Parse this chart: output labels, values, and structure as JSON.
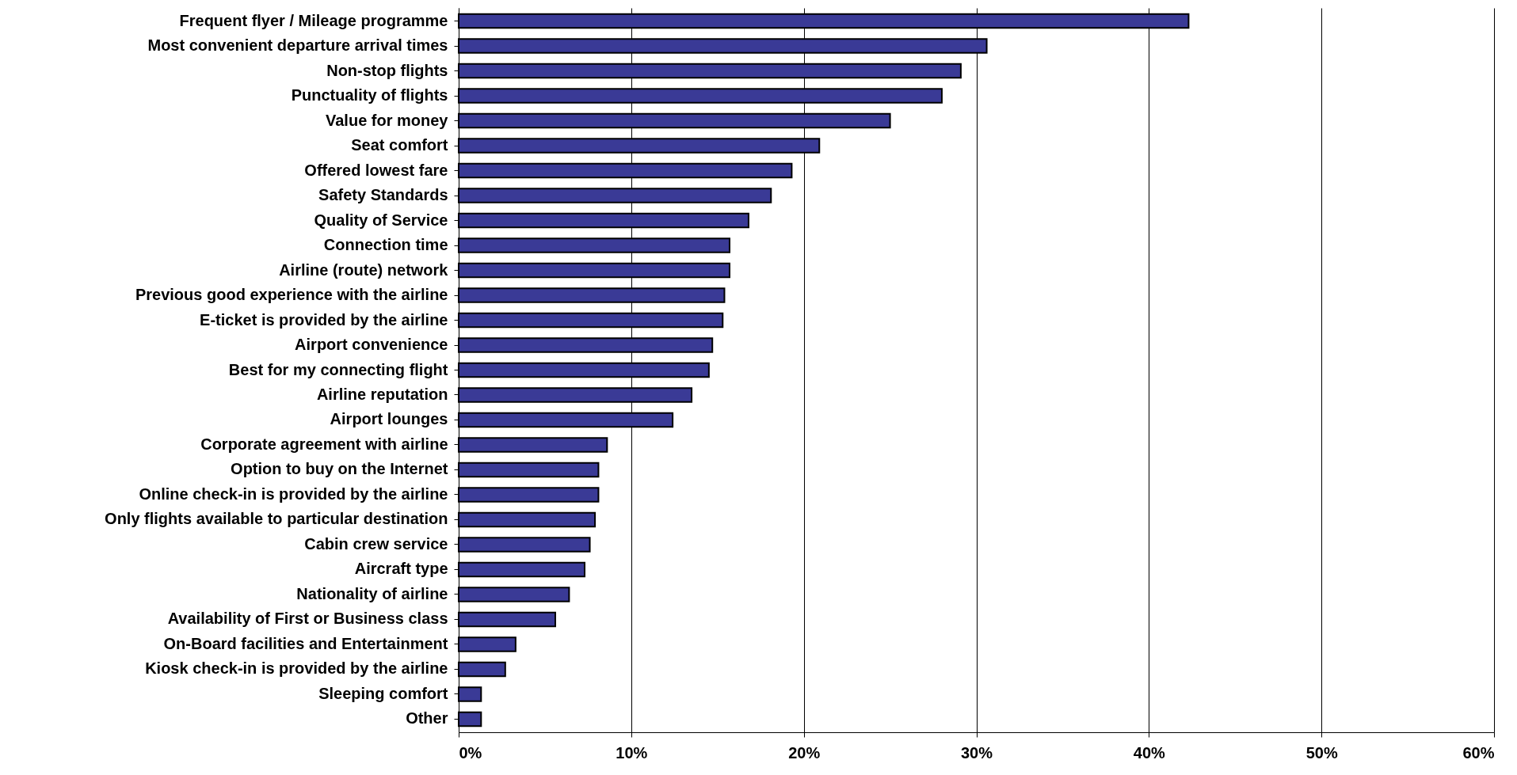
{
  "chart_data": {
    "type": "bar",
    "orientation": "horizontal",
    "categories": [
      "Frequent flyer / Mileage programme",
      "Most convenient departure arrival times",
      "Non-stop flights",
      "Punctuality of flights",
      "Value for money",
      "Seat comfort",
      "Offered lowest fare",
      "Safety Standards",
      "Quality of Service",
      "Connection time",
      "Airline (route) network",
      "Previous good experience with the airline",
      "E-ticket is provided by the airline",
      "Airport convenience",
      "Best for my connecting flight",
      "Airline reputation",
      "Airport lounges",
      "Corporate agreement with airline",
      "Option to buy on the Internet",
      "Online check-in is provided by the airline",
      "Only flights available to particular destination",
      "Cabin crew service",
      "Aircraft type",
      "Nationality of airline",
      "Availability of First or Business class",
      "On-Board facilities and Entertainment",
      "Kiosk check-in is provided by the airline",
      "Sleeping comfort",
      "Other"
    ],
    "values": [
      42.3,
      30.6,
      29.1,
      28.0,
      25.0,
      20.9,
      19.3,
      18.1,
      16.8,
      15.7,
      15.7,
      15.4,
      15.3,
      14.7,
      14.5,
      13.5,
      12.4,
      8.6,
      8.1,
      8.1,
      7.9,
      7.6,
      7.3,
      6.4,
      5.6,
      3.3,
      2.7,
      1.3,
      1.3
    ],
    "color": "#3a3a96",
    "xlim": [
      0,
      60
    ],
    "xticks": [
      {
        "value": 0,
        "label": "0%"
      },
      {
        "value": 10,
        "label": "10%"
      },
      {
        "value": 20,
        "label": "20%"
      },
      {
        "value": 30,
        "label": "30%"
      },
      {
        "value": 40,
        "label": "40%"
      },
      {
        "value": 50,
        "label": "50%"
      },
      {
        "value": 60,
        "label": "60%"
      }
    ],
    "grid": "x"
  }
}
